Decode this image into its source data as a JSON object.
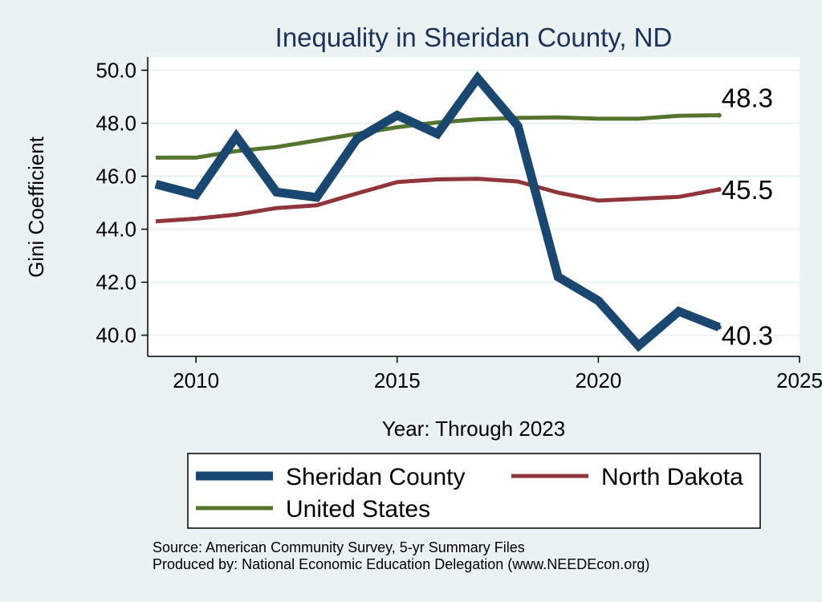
{
  "chart_data": {
    "type": "line",
    "title": "Inequality in Sheridan County, ND",
    "xlabel": "Year: Through 2023",
    "ylabel": "Gini Coefficient",
    "xlim": [
      2008.8,
      2025
    ],
    "ylim": [
      39.2,
      50.5
    ],
    "x_ticks": [
      2010,
      2015,
      2020,
      2025
    ],
    "y_ticks": [
      "50.0",
      "48.0",
      "46.0",
      "44.0",
      "42.0",
      "40.0"
    ],
    "y_tick_values": [
      50,
      48,
      46,
      44,
      42,
      40
    ],
    "grid": true,
    "legend_position": "bottom",
    "x": [
      2009,
      2010,
      2011,
      2012,
      2013,
      2014,
      2015,
      2016,
      2017,
      2018,
      2019,
      2020,
      2021,
      2022,
      2023
    ],
    "series": [
      {
        "name": "Sheridan County",
        "color": "#1a476f",
        "values": [
          45.7,
          45.3,
          47.5,
          45.4,
          45.2,
          47.4,
          48.3,
          47.6,
          49.7,
          47.9,
          42.2,
          41.3,
          39.6,
          40.9,
          40.3
        ],
        "end_label": "40.3"
      },
      {
        "name": "North Dakota",
        "color": "#90353b",
        "values": [
          44.3,
          44.4,
          44.55,
          44.8,
          44.9,
          45.35,
          45.78,
          45.88,
          45.9,
          45.8,
          45.38,
          45.08,
          45.15,
          45.22,
          45.5
        ],
        "end_label": "45.5"
      },
      {
        "name": "United States",
        "color": "#55752f",
        "values": [
          46.7,
          46.7,
          46.95,
          47.1,
          47.35,
          47.6,
          47.85,
          48.03,
          48.15,
          48.2,
          48.22,
          48.17,
          48.17,
          48.28,
          48.3
        ],
        "end_label": "48.3"
      }
    ],
    "notes": [
      "Source: American Community Survey, 5-yr Summary Files",
      "Produced by: National Economic Education Delegation (www.NEEDEcon.org)"
    ]
  }
}
